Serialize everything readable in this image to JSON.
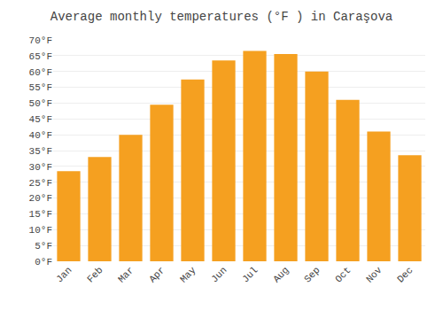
{
  "chart_data": {
    "type": "bar",
    "title": "Average monthly temperatures (°F ) in Caraşova",
    "categories": [
      "Jan",
      "Feb",
      "Mar",
      "Apr",
      "May",
      "Jun",
      "Jul",
      "Aug",
      "Sep",
      "Oct",
      "Nov",
      "Dec"
    ],
    "values": [
      28.5,
      33.0,
      40.0,
      49.5,
      57.5,
      63.5,
      66.5,
      65.5,
      60.0,
      51.0,
      41.0,
      33.5
    ],
    "color": "#F5A020",
    "ylim": [
      0,
      70
    ],
    "yticks": [
      {
        "value": 0,
        "label": "0°F"
      },
      {
        "value": 5,
        "label": "5°F"
      },
      {
        "value": 10,
        "label": "10°F"
      },
      {
        "value": 15,
        "label": "15°F"
      },
      {
        "value": 20,
        "label": "20°F"
      },
      {
        "value": 25,
        "label": "25°F"
      },
      {
        "value": 30,
        "label": "30°F"
      },
      {
        "value": 35,
        "label": "35°F"
      },
      {
        "value": 40,
        "label": "40°F"
      },
      {
        "value": 45,
        "label": "45°F"
      },
      {
        "value": 50,
        "label": "50°F"
      },
      {
        "value": 55,
        "label": "55°F"
      },
      {
        "value": 60,
        "label": "60°F"
      },
      {
        "value": 65,
        "label": "65°F"
      },
      {
        "value": 70,
        "label": "70°F"
      }
    ],
    "grid": true
  }
}
